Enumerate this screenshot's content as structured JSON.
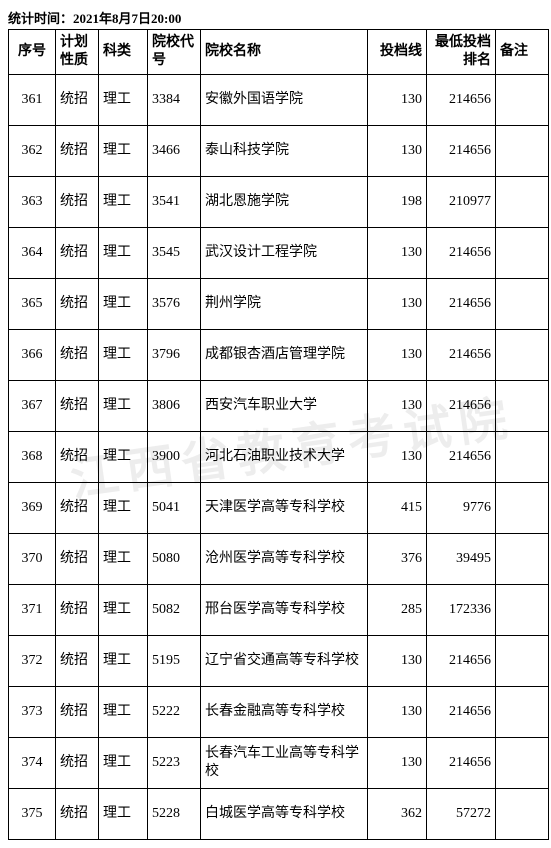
{
  "timestamp_label": "统计时间：2021年8月7日20:00",
  "watermark_text": "江西省教育考试院",
  "columns": {
    "seq": "序号",
    "plan": "计划性质",
    "cat": "科类",
    "code": "院校代号",
    "name": "院校名称",
    "score": "投档线",
    "rank": "最低投档排名",
    "note": "备注"
  },
  "rows": [
    {
      "seq": "361",
      "plan": "统招",
      "cat": "理工",
      "code": "3384",
      "name": "安徽外国语学院",
      "score": "130",
      "rank": "214656",
      "note": ""
    },
    {
      "seq": "362",
      "plan": "统招",
      "cat": "理工",
      "code": "3466",
      "name": "泰山科技学院",
      "score": "130",
      "rank": "214656",
      "note": ""
    },
    {
      "seq": "363",
      "plan": "统招",
      "cat": "理工",
      "code": "3541",
      "name": "湖北恩施学院",
      "score": "198",
      "rank": "210977",
      "note": ""
    },
    {
      "seq": "364",
      "plan": "统招",
      "cat": "理工",
      "code": "3545",
      "name": "武汉设计工程学院",
      "score": "130",
      "rank": "214656",
      "note": ""
    },
    {
      "seq": "365",
      "plan": "统招",
      "cat": "理工",
      "code": "3576",
      "name": "荆州学院",
      "score": "130",
      "rank": "214656",
      "note": ""
    },
    {
      "seq": "366",
      "plan": "统招",
      "cat": "理工",
      "code": "3796",
      "name": "成都银杏酒店管理学院",
      "score": "130",
      "rank": "214656",
      "note": ""
    },
    {
      "seq": "367",
      "plan": "统招",
      "cat": "理工",
      "code": "3806",
      "name": "西安汽车职业大学",
      "score": "130",
      "rank": "214656",
      "note": ""
    },
    {
      "seq": "368",
      "plan": "统招",
      "cat": "理工",
      "code": "3900",
      "name": "河北石油职业技术大学",
      "score": "130",
      "rank": "214656",
      "note": ""
    },
    {
      "seq": "369",
      "plan": "统招",
      "cat": "理工",
      "code": "5041",
      "name": "天津医学高等专科学校",
      "score": "415",
      "rank": "9776",
      "note": ""
    },
    {
      "seq": "370",
      "plan": "统招",
      "cat": "理工",
      "code": "5080",
      "name": "沧州医学高等专科学校",
      "score": "376",
      "rank": "39495",
      "note": ""
    },
    {
      "seq": "371",
      "plan": "统招",
      "cat": "理工",
      "code": "5082",
      "name": "邢台医学高等专科学校",
      "score": "285",
      "rank": "172336",
      "note": ""
    },
    {
      "seq": "372",
      "plan": "统招",
      "cat": "理工",
      "code": "5195",
      "name": "辽宁省交通高等专科学校",
      "score": "130",
      "rank": "214656",
      "note": ""
    },
    {
      "seq": "373",
      "plan": "统招",
      "cat": "理工",
      "code": "5222",
      "name": "长春金融高等专科学校",
      "score": "130",
      "rank": "214656",
      "note": ""
    },
    {
      "seq": "374",
      "plan": "统招",
      "cat": "理工",
      "code": "5223",
      "name": "长春汽车工业高等专科学校",
      "score": "130",
      "rank": "214656",
      "note": ""
    },
    {
      "seq": "375",
      "plan": "统招",
      "cat": "理工",
      "code": "5228",
      "name": "白城医学高等专科学校",
      "score": "362",
      "rank": "57272",
      "note": ""
    }
  ]
}
